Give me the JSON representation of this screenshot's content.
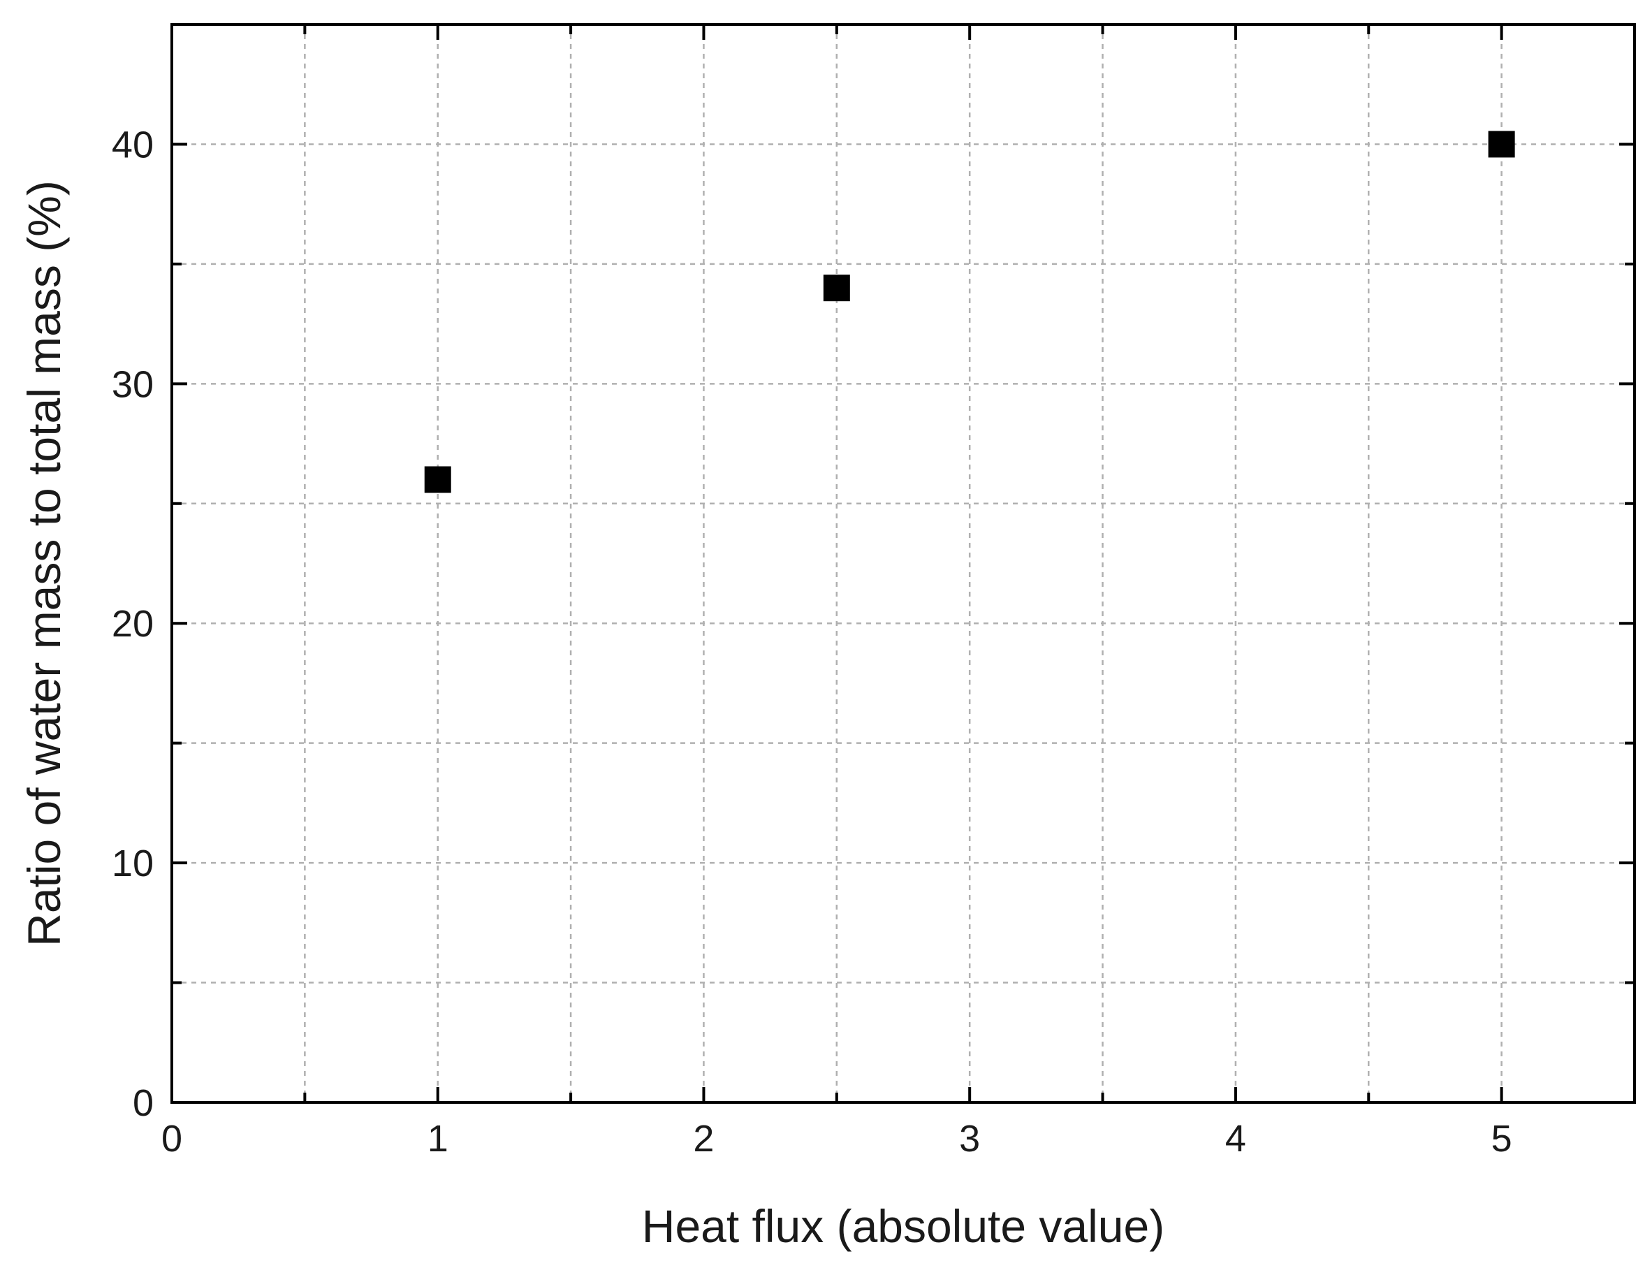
{
  "chart_data": {
    "type": "scatter",
    "title": "",
    "xlabel": "Heat flux (absolute value)",
    "ylabel": "Ratio of water mass to total mass (%)",
    "xlim": [
      0,
      5.5
    ],
    "ylim": [
      0,
      45
    ],
    "x_ticks": [
      0,
      1,
      2,
      3,
      4,
      5
    ],
    "x_tick_labels": [
      "0",
      "1",
      "2",
      "3",
      "4",
      "5"
    ],
    "x_minor_ticks": [
      0.5,
      1.5,
      2.5,
      3.5,
      4.5
    ],
    "y_ticks": [
      0,
      10,
      20,
      30,
      40
    ],
    "y_tick_labels": [
      "0",
      "10",
      "20",
      "30",
      "40"
    ],
    "y_minor_ticks": [
      5,
      15,
      25,
      35
    ],
    "grid": true,
    "legend": "none",
    "marker": "square",
    "marker_color": "#000000",
    "series": [
      {
        "x": [
          1,
          2.5,
          5
        ],
        "y": [
          26,
          34,
          40
        ]
      }
    ]
  }
}
